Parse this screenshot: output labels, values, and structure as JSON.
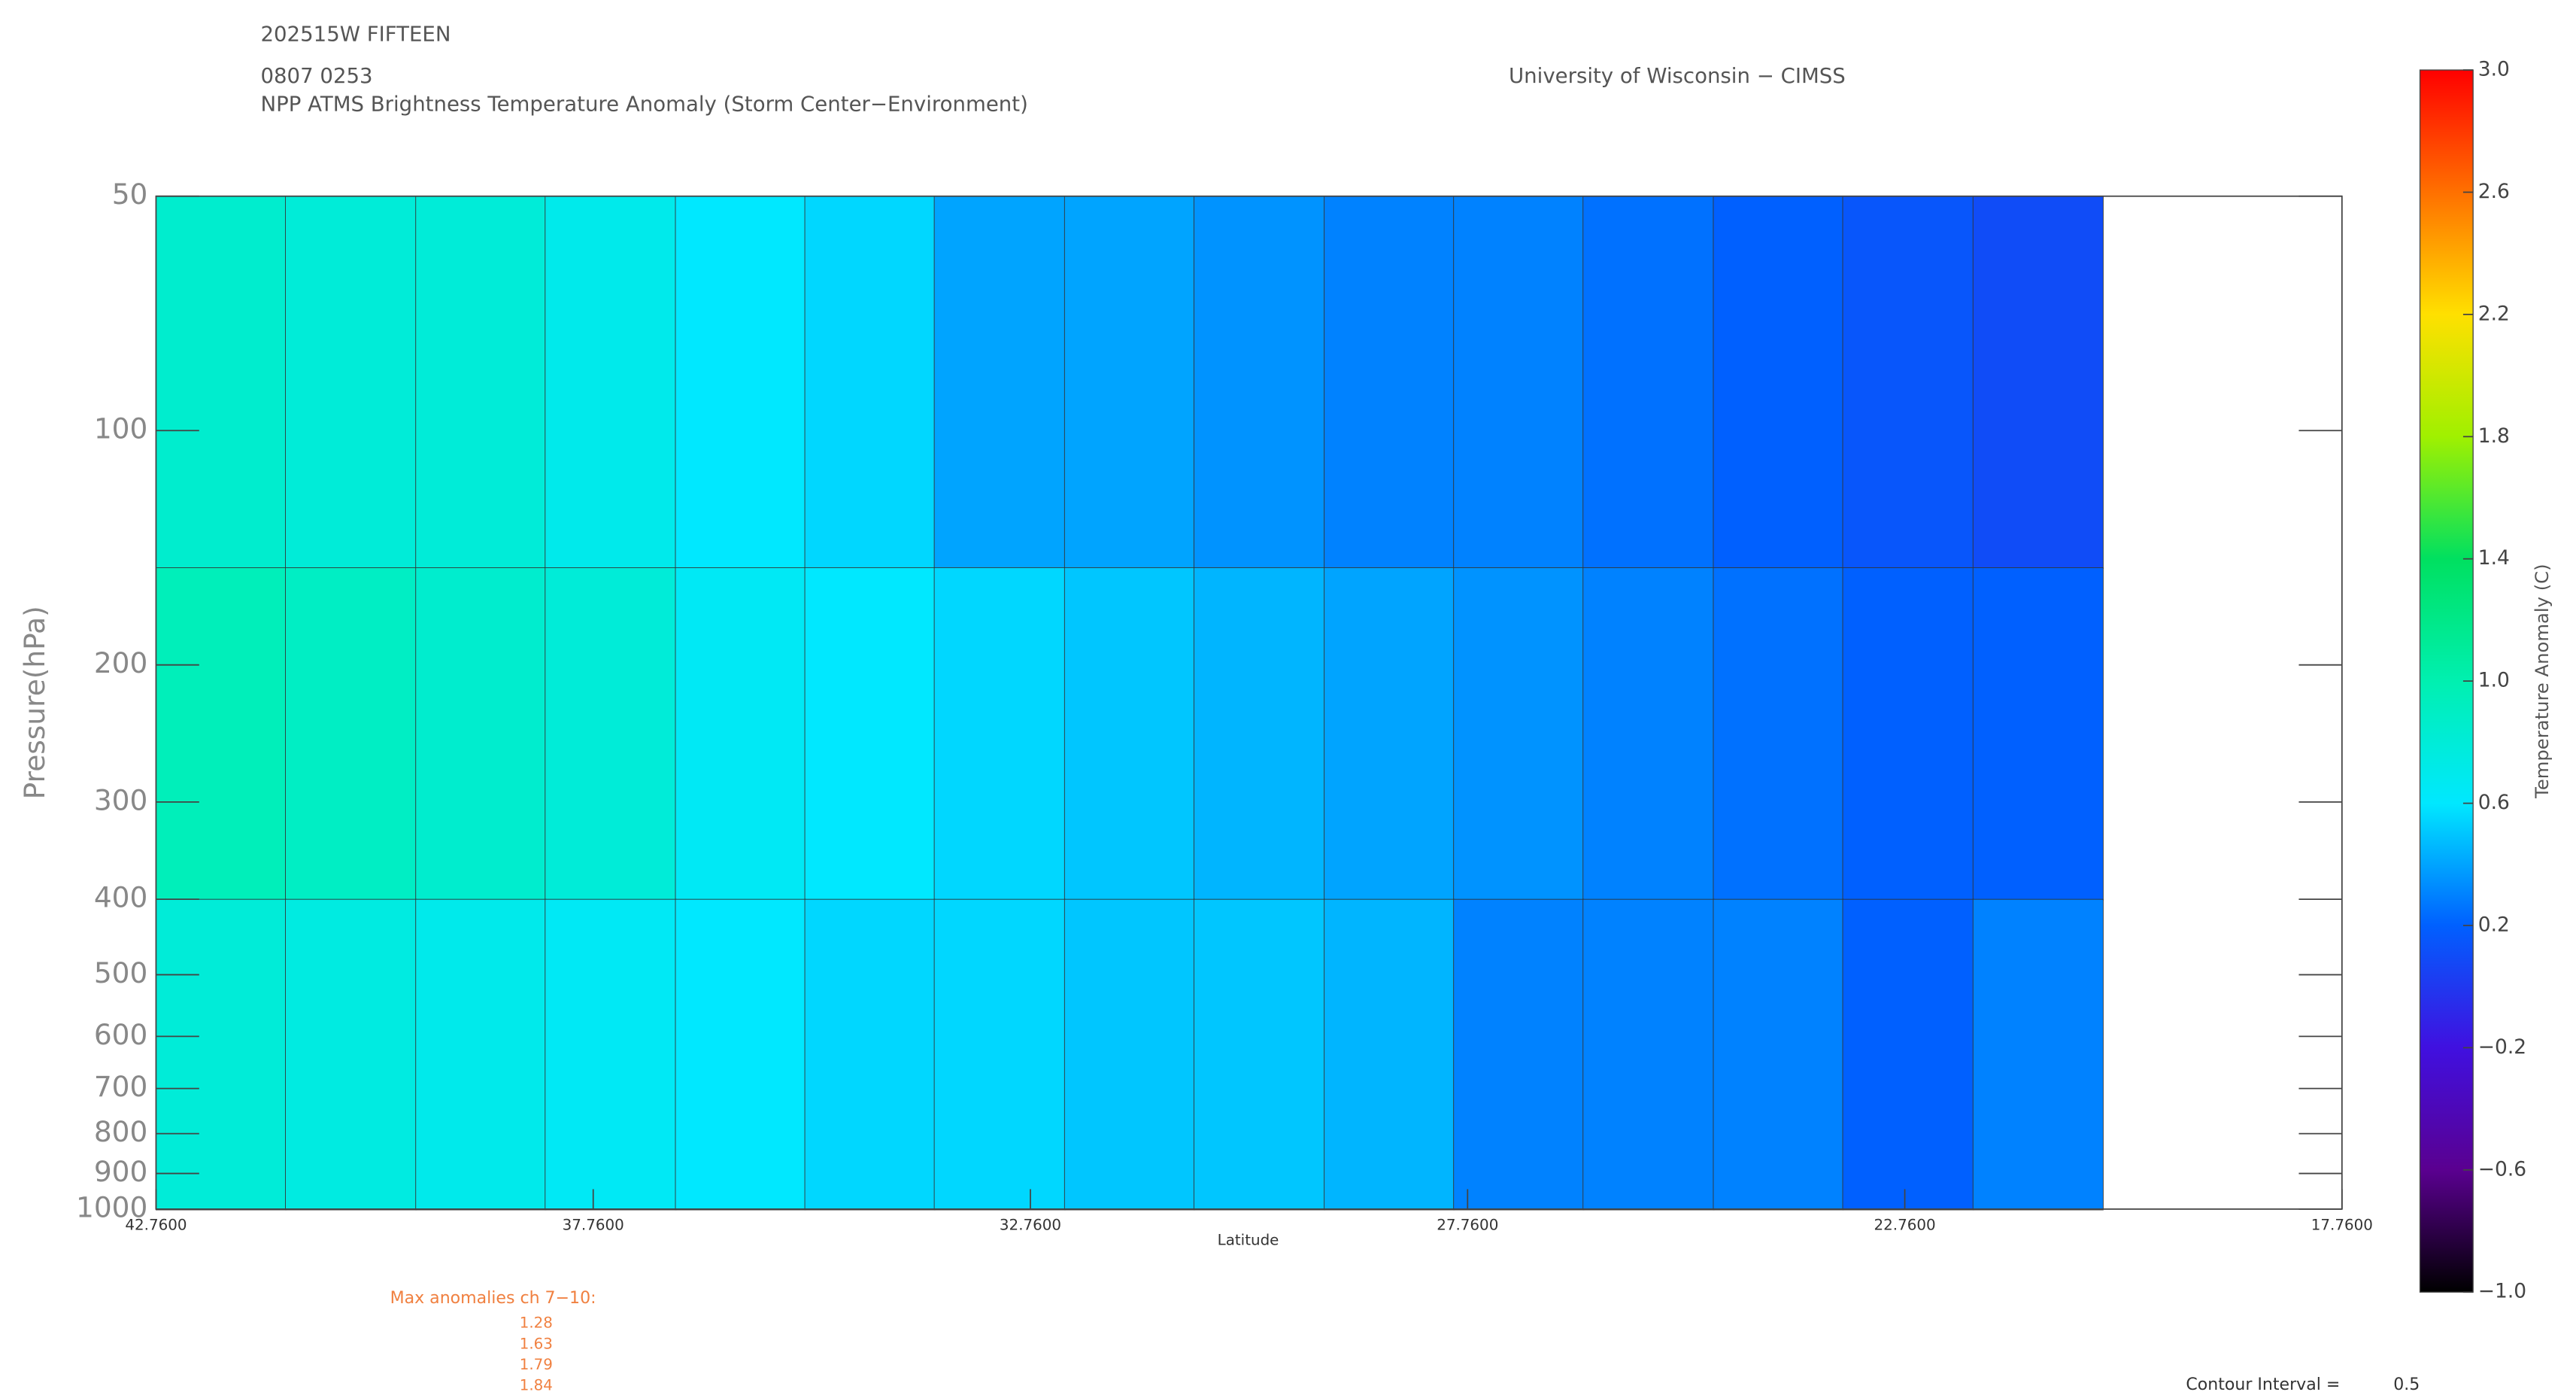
{
  "chart_data": {
    "type": "contour",
    "header": [
      "202515W FIFTEEN",
      "0807 0253",
      "NPP ATMS Brightness Temperature Anomaly (Storm Center−Environment)"
    ],
    "source": "University of Wisconsin − CIMSS",
    "xlabel": "Latitude",
    "ylabel": "Pressure(hPa)",
    "colorbar_label": "Temperature Anomaly (C)",
    "xlim": [
      42.76,
      17.76
    ],
    "xticks": [
      {
        "value": 42.76,
        "label": "42.7600"
      },
      {
        "value": 37.76,
        "label": "37.7600"
      },
      {
        "value": 32.76,
        "label": "32.7600"
      },
      {
        "value": 27.76,
        "label": "27.7600"
      },
      {
        "value": 22.76,
        "label": "22.7600"
      },
      {
        "value": 17.76,
        "label": "17.7600"
      }
    ],
    "ylim": [
      1000,
      50
    ],
    "log_y": true,
    "yticks": [
      50,
      100,
      200,
      300,
      400,
      500,
      600,
      700,
      800,
      900,
      1000
    ],
    "clim": [
      -1.0,
      3.0
    ],
    "cticks": [
      {
        "value": -1.0,
        "label": "−1.0"
      },
      {
        "value": -0.6,
        "label": "−0.6"
      },
      {
        "value": -0.2,
        "label": "−0.2"
      },
      {
        "value": 0.2,
        "label": "0.2"
      },
      {
        "value": 0.6,
        "label": "0.6"
      },
      {
        "value": 1.0,
        "label": "1.0"
      },
      {
        "value": 1.4,
        "label": "1.4"
      },
      {
        "value": 1.8,
        "label": "1.8"
      },
      {
        "value": 2.2,
        "label": "2.2"
      },
      {
        "value": 2.6,
        "label": "2.6"
      },
      {
        "value": 3.0,
        "label": "3.0"
      }
    ],
    "colorbar_colors": [
      "#000000",
      "#5a0090",
      "#4010e0",
      "#0060ff",
      "#00e8ff",
      "#00f0b0",
      "#00e060",
      "#a0f000",
      "#ffe000",
      "#ff7000",
      "#ff0000"
    ],
    "lat_edges": [
      42.76,
      41.28,
      39.79,
      38.31,
      36.82,
      35.34,
      33.86,
      32.37,
      30.89,
      29.4,
      27.92,
      26.44,
      24.95,
      23.47,
      21.98,
      20.5
    ],
    "p_edges": [
      50,
      150,
      400,
      1000
    ],
    "z": [
      [
        0.85,
        0.8,
        0.8,
        0.7,
        0.6,
        0.55,
        0.4,
        0.4,
        0.35,
        0.3,
        0.3,
        0.25,
        0.2,
        0.15,
        0.1
      ],
      [
        0.95,
        0.9,
        0.85,
        0.8,
        0.65,
        0.6,
        0.55,
        0.5,
        0.45,
        0.4,
        0.35,
        0.3,
        0.25,
        0.2,
        0.2
      ],
      [
        0.8,
        0.75,
        0.7,
        0.65,
        0.6,
        0.55,
        0.55,
        0.5,
        0.5,
        0.45,
        0.3,
        0.3,
        0.3,
        0.2,
        0.3
      ]
    ],
    "max_title": "Max anomalies ch 7−10:",
    "max_values": [
      1.28,
      1.63,
      1.79,
      1.84
    ],
    "interval_label": "Contour Interval =",
    "interval": 0.5
  }
}
